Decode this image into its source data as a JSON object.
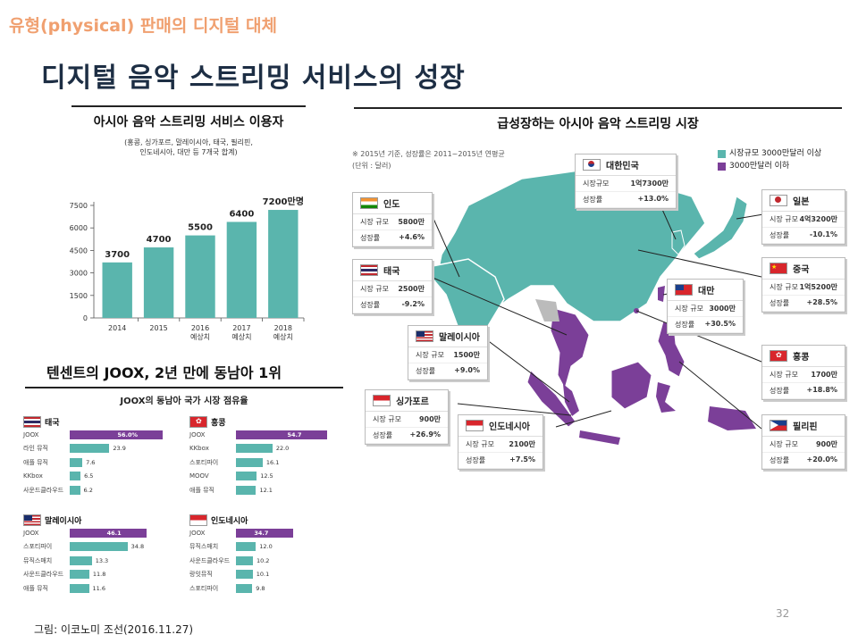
{
  "slide": {
    "top_heading": "유형(physical) 판매의 디지털 대체",
    "title": "디지털 음악 스트리밍 서비스의 성장",
    "source": "그림: 이코노미 조선(2016.11.27)",
    "page_number": "32"
  },
  "users_chart": {
    "title": "아시아 음악 스트리밍 서비스 이용자",
    "subtitle_line1": "(홍콩, 싱가포르, 말레이시아, 태국, 필리핀,",
    "subtitle_line2": "인도네시아, 대만 등 7개국 합계)",
    "yticks": [
      "7500",
      "6000",
      "4500",
      "3000",
      "1500",
      "0"
    ],
    "value_labels": [
      "3700",
      "4700",
      "5500",
      "6400",
      "7200만명"
    ],
    "cat_line1": [
      "2014",
      "2015",
      "2016",
      "2017",
      "2018"
    ],
    "cat_line2": [
      "",
      "",
      "예상치",
      "예상치",
      "예상치"
    ],
    "bar_color": "#5ab5ad"
  },
  "chart_data": [
    {
      "type": "bar",
      "title": "아시아 음악 스트리밍 서비스 이용자",
      "categories": [
        "2014",
        "2015",
        "2016 예상치",
        "2017 예상치",
        "2018 예상치"
      ],
      "values": [
        3700,
        4700,
        5500,
        6400,
        7200
      ],
      "ylim": [
        0,
        7500
      ],
      "grid": false
    }
  ],
  "joox": {
    "subheading": "텐센트의 JOOX, 2년 만에 동남아 1위",
    "title": "JOOX의 동남아 국가 시장 점유율",
    "thailand": {
      "name": "태국",
      "rows": [
        {
          "svc": "JOOX",
          "val": "56.0%",
          "n": 56.0
        },
        {
          "svc": "라인 뮤직",
          "val": "23.9",
          "n": 23.9
        },
        {
          "svc": "애플 뮤직",
          "val": "7.6",
          "n": 7.6
        },
        {
          "svc": "KKbox",
          "val": "6.5",
          "n": 6.5
        },
        {
          "svc": "사운드클라우드",
          "val": "6.2",
          "n": 6.2
        }
      ]
    },
    "hongkong": {
      "name": "홍콩",
      "rows": [
        {
          "svc": "JOOX",
          "val": "54.7",
          "n": 54.7
        },
        {
          "svc": "KKbox",
          "val": "22.0",
          "n": 22.0
        },
        {
          "svc": "스포티파이",
          "val": "16.1",
          "n": 16.1
        },
        {
          "svc": "MOOV",
          "val": "12.5",
          "n": 12.5
        },
        {
          "svc": "애플 뮤직",
          "val": "12.1",
          "n": 12.1
        }
      ]
    },
    "malaysia": {
      "name": "말레이시아",
      "rows": [
        {
          "svc": "JOOX",
          "val": "46.1",
          "n": 46.1
        },
        {
          "svc": "스포티파이",
          "val": "34.8",
          "n": 34.8
        },
        {
          "svc": "뮤직스매치",
          "val": "13.3",
          "n": 13.3
        },
        {
          "svc": "사운드클라우드",
          "val": "11.8",
          "n": 11.8
        },
        {
          "svc": "애플 뮤직",
          "val": "11.6",
          "n": 11.6
        }
      ]
    },
    "indonesia": {
      "name": "인도네시아",
      "rows": [
        {
          "svc": "JOOX",
          "val": "34.7",
          "n": 34.7
        },
        {
          "svc": "뮤직스매치",
          "val": "12.0",
          "n": 12.0
        },
        {
          "svc": "사운드클라우드",
          "val": "10.2",
          "n": 10.2
        },
        {
          "svc": "랑잇뮤직",
          "val": "10.1",
          "n": 10.1
        },
        {
          "svc": "스포티파이",
          "val": "9.8",
          "n": 9.8
        }
      ]
    },
    "joox_color": "#7b3f98",
    "other_color": "#5ab5ad"
  },
  "map": {
    "title": "급성장하는 아시아 음악 스트리밍 시장",
    "note": "※ 2015년 기준, 성장률은 2011~2015년 연평균",
    "unit": "(단위 : 달러)",
    "legend_big": "시장규모 3000만달러 이상",
    "legend_small": "3000만달러 이하",
    "color_big": "#5ab5ad",
    "color_small": "#7b3f98",
    "size_label": "시장 규모",
    "size_label_short": "시장규모",
    "growth_label": "성장률",
    "countries": {
      "korea": {
        "name": "대한민국",
        "size": "1억7300만",
        "growth": "+13.0%"
      },
      "japan": {
        "name": "일본",
        "size": "4억3200만",
        "growth": "-10.1%"
      },
      "china": {
        "name": "중국",
        "size": "1억5200만",
        "growth": "+28.5%"
      },
      "india": {
        "name": "인도",
        "size": "5800만",
        "growth": "+4.6%"
      },
      "thailand": {
        "name": "태국",
        "size": "2500만",
        "growth": "-9.2%"
      },
      "taiwan": {
        "name": "대만",
        "size": "3000만",
        "growth": "+30.5%"
      },
      "malaysia": {
        "name": "말레이시아",
        "size": "1500만",
        "growth": "+9.0%"
      },
      "hongkong": {
        "name": "홍콩",
        "size": "1700만",
        "growth": "+18.8%"
      },
      "singapore": {
        "name": "싱가포르",
        "size": "900만",
        "growth": "+26.9%"
      },
      "indonesia": {
        "name": "인도네시아",
        "size": "2100만",
        "growth": "+7.5%"
      },
      "philippines": {
        "name": "필리핀",
        "size": "900만",
        "growth": "+20.0%"
      }
    }
  }
}
